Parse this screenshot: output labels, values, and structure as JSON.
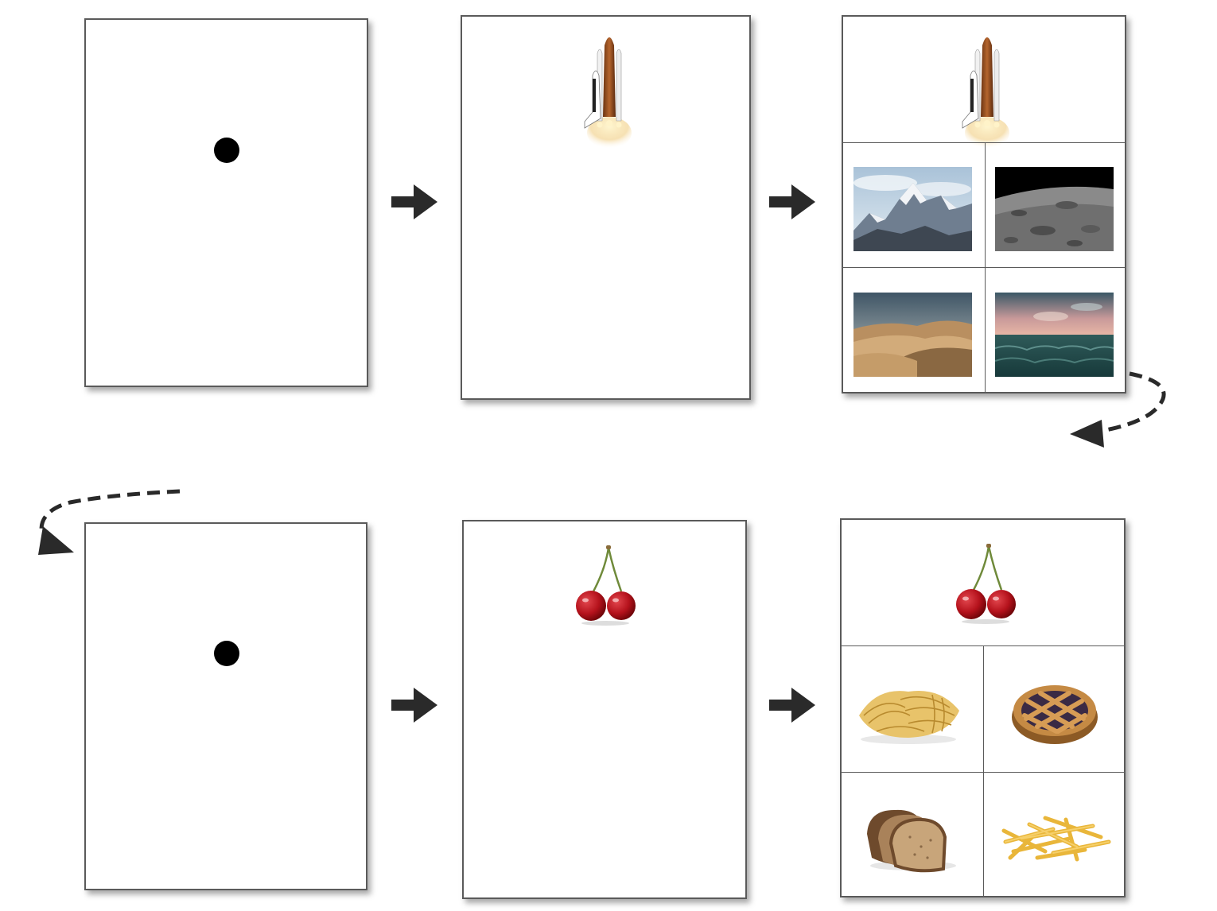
{
  "trials": [
    {
      "steps": [
        "fixation",
        "cue",
        "choice"
      ],
      "cue_icon": "space-shuttle-icon",
      "choice_icons": [
        "mountains-photo-icon",
        "moon-surface-photo-icon",
        "desert-dunes-photo-icon",
        "ocean-sunset-photo-icon"
      ]
    },
    {
      "steps": [
        "fixation",
        "cue",
        "choice"
      ],
      "cue_icon": "cherries-icon",
      "choice_icons": [
        "pasta-icon",
        "pie-icon",
        "bread-icon",
        "french-fries-icon"
      ]
    }
  ],
  "flow_arrow_icon": "right-arrow-icon",
  "continue_arrow_icon": "dashed-curved-arrow-icon",
  "colors": {
    "panel_border": "#5a5a5a",
    "arrow": "#2a2a2a",
    "dot": "#000000"
  }
}
